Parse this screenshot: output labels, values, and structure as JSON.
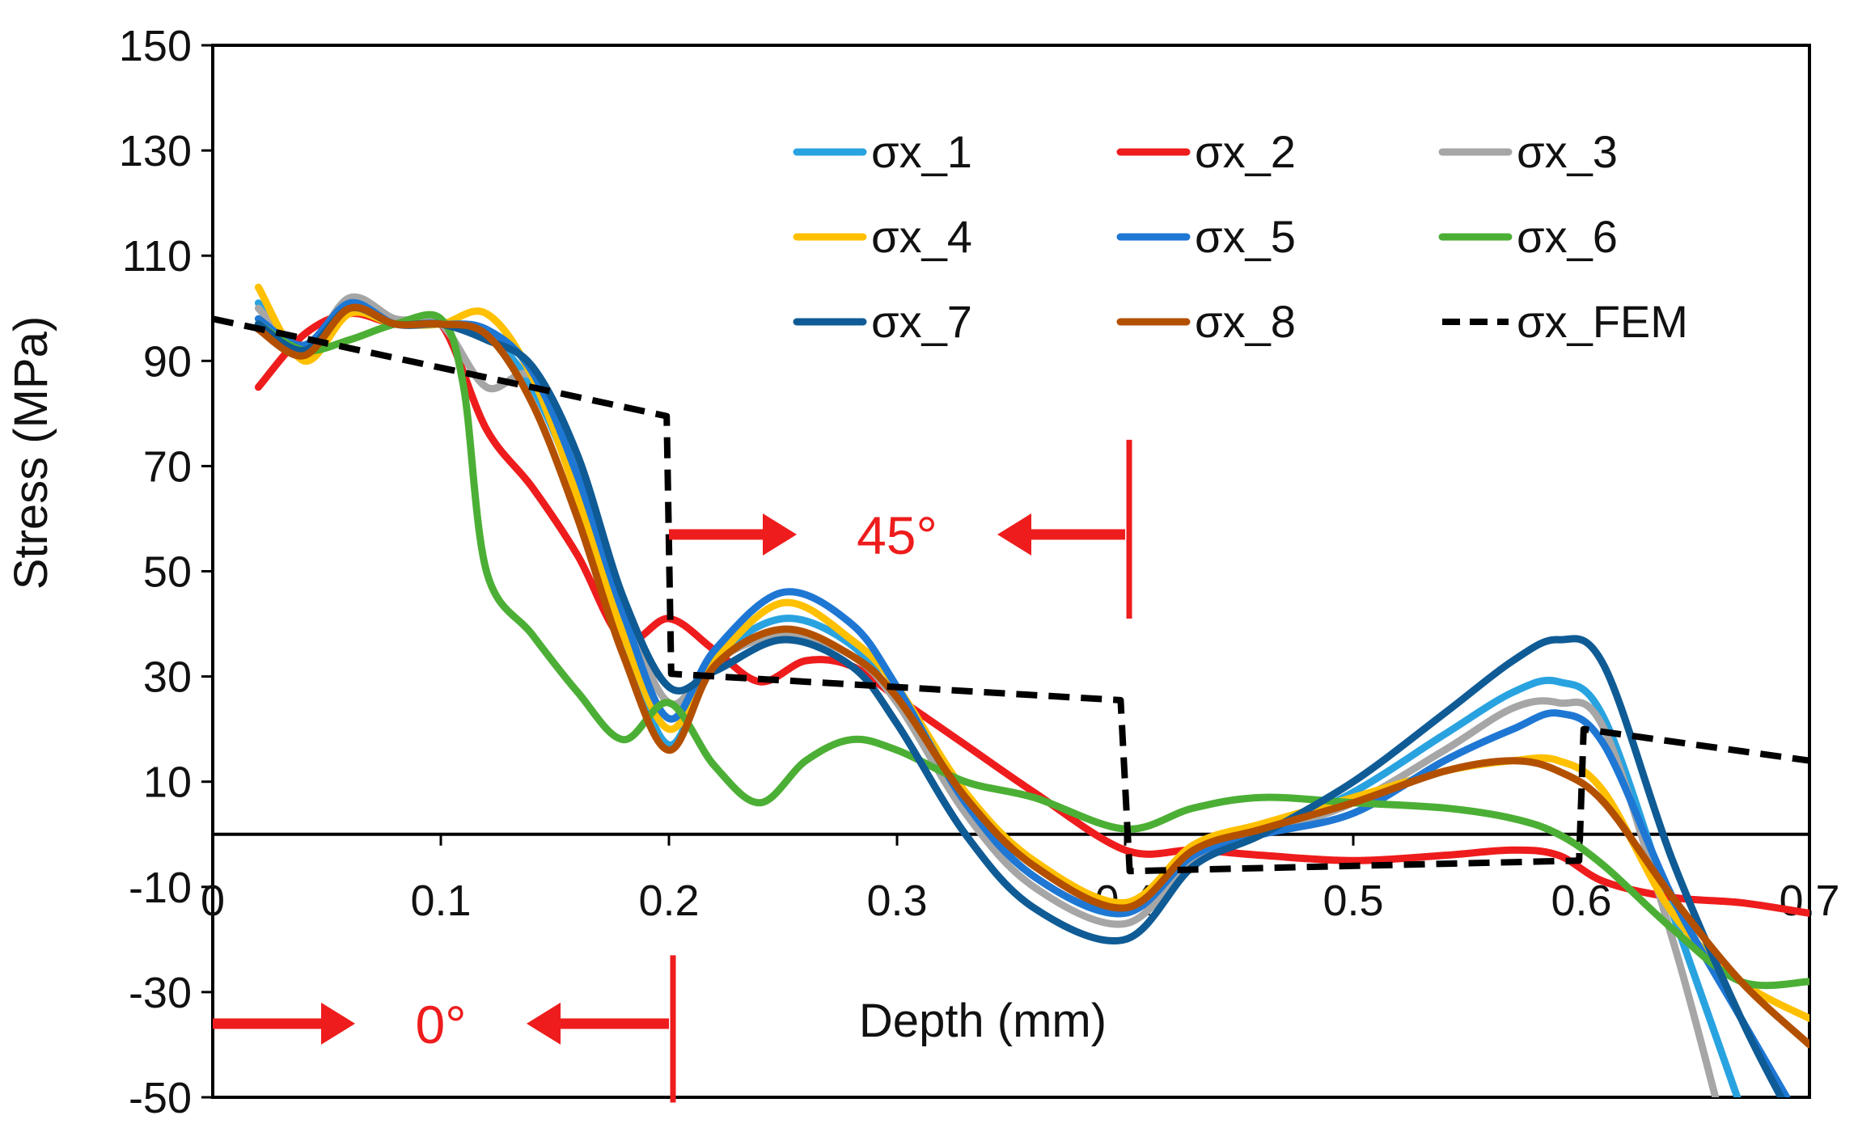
{
  "chart_data": {
    "type": "line",
    "title": "",
    "xlabel": "Depth (mm)",
    "ylabel": "Stress (MPa)",
    "xlim": [
      0,
      0.7
    ],
    "ylim": [
      -50,
      150
    ],
    "x_ticks": [
      "0",
      "0.1",
      "0.2",
      "0.3",
      "0.4",
      "0.5",
      "0.6",
      "0.7"
    ],
    "y_ticks": [
      "150",
      "130",
      "110",
      "90",
      "70",
      "50",
      "30",
      "10",
      "-10",
      "-30",
      "-50"
    ],
    "grid": false,
    "legend_position": "top-right",
    "series": [
      {
        "name": "σx_1",
        "color": "#29a3e0",
        "dash": false,
        "x": [
          0.02,
          0.04,
          0.06,
          0.08,
          0.1,
          0.12,
          0.14,
          0.16,
          0.18,
          0.2,
          0.22,
          0.25,
          0.28,
          0.3,
          0.33,
          0.36,
          0.4,
          0.43,
          0.46,
          0.5,
          0.54,
          0.57,
          0.59,
          0.61,
          0.64,
          0.67
        ],
        "y": [
          101,
          92,
          100,
          97,
          97,
          95,
          85,
          65,
          38,
          17,
          33,
          41,
          36,
          25,
          6,
          -8,
          -15,
          -3,
          0,
          8,
          19,
          27,
          29,
          22,
          -15,
          -52
        ]
      },
      {
        "name": "σx_2",
        "color": "#ee1c1c",
        "dash": false,
        "x": [
          0.02,
          0.04,
          0.06,
          0.08,
          0.1,
          0.12,
          0.14,
          0.16,
          0.18,
          0.2,
          0.22,
          0.24,
          0.26,
          0.28,
          0.3,
          0.33,
          0.36,
          0.4,
          0.43,
          0.46,
          0.5,
          0.54,
          0.57,
          0.59,
          0.61,
          0.64,
          0.67,
          0.7
        ],
        "y": [
          85,
          95,
          99,
          97,
          97,
          77,
          66,
          53,
          37,
          41,
          35,
          29,
          33,
          32,
          26,
          17,
          8,
          -3,
          -3,
          -4,
          -5,
          -4,
          -3,
          -4,
          -9,
          -12,
          -13,
          -15
        ]
      },
      {
        "name": "σx_3",
        "color": "#a6a6a6",
        "dash": false,
        "x": [
          0.02,
          0.04,
          0.06,
          0.08,
          0.1,
          0.12,
          0.14,
          0.16,
          0.18,
          0.2,
          0.22,
          0.25,
          0.28,
          0.3,
          0.33,
          0.36,
          0.4,
          0.43,
          0.46,
          0.5,
          0.54,
          0.57,
          0.59,
          0.61,
          0.64,
          0.66
        ],
        "y": [
          100,
          92,
          102,
          98,
          97,
          85,
          87,
          70,
          44,
          25,
          33,
          38,
          34,
          25,
          4,
          -10,
          -17,
          -5,
          0,
          6,
          16,
          24,
          25,
          20,
          -20,
          -52
        ]
      },
      {
        "name": "σx_4",
        "color": "#ffc000",
        "dash": false,
        "x": [
          0.02,
          0.04,
          0.06,
          0.08,
          0.1,
          0.12,
          0.14,
          0.16,
          0.18,
          0.2,
          0.22,
          0.25,
          0.28,
          0.3,
          0.33,
          0.36,
          0.4,
          0.43,
          0.46,
          0.5,
          0.54,
          0.57,
          0.59,
          0.61,
          0.64,
          0.67,
          0.7
        ],
        "y": [
          104,
          90,
          99,
          97,
          97,
          99,
          87,
          64,
          38,
          20,
          33,
          44,
          37,
          28,
          8,
          -5,
          -13,
          -2,
          2,
          7,
          12,
          14,
          14,
          8,
          -15,
          -28,
          -35
        ]
      },
      {
        "name": "σx_5",
        "color": "#1f77d4",
        "dash": false,
        "x": [
          0.02,
          0.04,
          0.06,
          0.08,
          0.1,
          0.12,
          0.14,
          0.16,
          0.18,
          0.2,
          0.22,
          0.25,
          0.28,
          0.3,
          0.33,
          0.36,
          0.4,
          0.43,
          0.46,
          0.5,
          0.54,
          0.57,
          0.59,
          0.61,
          0.64,
          0.67,
          0.69
        ],
        "y": [
          98,
          93,
          101,
          97,
          97,
          96,
          88,
          68,
          42,
          22,
          35,
          46,
          40,
          28,
          6,
          -8,
          -15,
          -4,
          0,
          4,
          14,
          20,
          23,
          17,
          -12,
          -35,
          -50
        ]
      },
      {
        "name": "σx_6",
        "color": "#4caf35",
        "dash": false,
        "x": [
          0.02,
          0.04,
          0.06,
          0.08,
          0.1,
          0.11,
          0.12,
          0.14,
          0.16,
          0.18,
          0.2,
          0.22,
          0.24,
          0.26,
          0.28,
          0.3,
          0.33,
          0.36,
          0.4,
          0.43,
          0.46,
          0.5,
          0.54,
          0.57,
          0.59,
          0.61,
          0.64,
          0.67,
          0.7
        ],
        "y": [
          97,
          92,
          94,
          97,
          98,
          85,
          50,
          38,
          27,
          18,
          25,
          13,
          6,
          14,
          18,
          16,
          10,
          7,
          1,
          5,
          7,
          6,
          5,
          3,
          0,
          -6,
          -18,
          -28,
          -28
        ]
      },
      {
        "name": "σx_7",
        "color": "#0f5b95",
        "dash": false,
        "x": [
          0.02,
          0.04,
          0.06,
          0.08,
          0.1,
          0.12,
          0.14,
          0.16,
          0.18,
          0.2,
          0.22,
          0.25,
          0.28,
          0.3,
          0.33,
          0.36,
          0.4,
          0.43,
          0.46,
          0.5,
          0.54,
          0.57,
          0.59,
          0.61,
          0.64,
          0.67,
          0.69
        ],
        "y": [
          97,
          92,
          100,
          97,
          97,
          94,
          89,
          72,
          45,
          28,
          31,
          37,
          32,
          21,
          0,
          -14,
          -20,
          -6,
          0,
          10,
          23,
          33,
          37,
          32,
          -5,
          -35,
          -52
        ]
      },
      {
        "name": "σx_8",
        "color": "#b35000",
        "dash": false,
        "x": [
          0.02,
          0.04,
          0.06,
          0.08,
          0.1,
          0.12,
          0.14,
          0.16,
          0.18,
          0.2,
          0.22,
          0.25,
          0.28,
          0.3,
          0.33,
          0.36,
          0.4,
          0.43,
          0.46,
          0.5,
          0.54,
          0.57,
          0.59,
          0.61,
          0.64,
          0.67,
          0.7
        ],
        "y": [
          96,
          91,
          100,
          97,
          97,
          95,
          82,
          60,
          34,
          16,
          32,
          39,
          34,
          26,
          7,
          -6,
          -14,
          -3,
          1,
          6,
          12,
          14,
          12,
          6,
          -12,
          -28,
          -40
        ]
      },
      {
        "name": "σx_FEM",
        "color": "#000000",
        "dash": true,
        "x": [
          0,
          0.199,
          0.201,
          0.398,
          0.402,
          0.599,
          0.601,
          0.7
        ],
        "y": [
          98,
          79.5,
          30.5,
          25.5,
          -7,
          -5,
          20,
          14
        ]
      }
    ],
    "annotations": [
      {
        "text": "45°",
        "from": 0.2,
        "to": 0.4,
        "y_level": 57
      },
      {
        "text": "0°",
        "from": 0.0,
        "to": 0.2,
        "y_level": -36
      }
    ]
  }
}
